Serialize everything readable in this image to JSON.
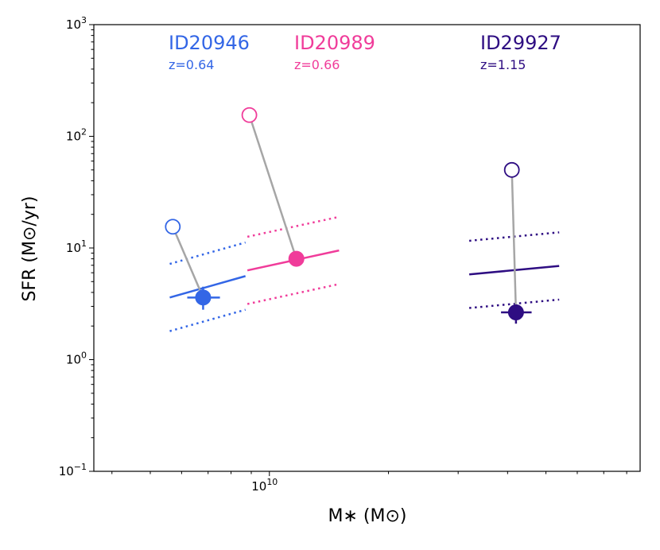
{
  "chart_data": {
    "type": "scatter",
    "xlabel": "M∗ (M⊙)",
    "ylabel": "SFR (M⊙/yr)",
    "xscale": "log",
    "yscale": "log",
    "xlim": [
      3600000000.0,
      86500000000.0
    ],
    "ylim": [
      0.1,
      1000
    ],
    "x_tick_labels": [
      {
        "value": 10000000000.0,
        "label": "10",
        "exp": "10"
      }
    ],
    "y_tick_labels": [
      {
        "value": 0.1,
        "label": "10",
        "exp": "−1"
      },
      {
        "value": 1,
        "label": "10",
        "exp": "0"
      },
      {
        "value": 10,
        "label": "10",
        "exp": "1"
      },
      {
        "value": 100,
        "label": "10",
        "exp": "2"
      },
      {
        "value": 1000,
        "label": "10",
        "exp": "3"
      }
    ],
    "grid": false,
    "series": [
      {
        "id": "ID20946",
        "annotation_name": "ID20946",
        "annotation_z": "z=0.64",
        "color": "#3366e6",
        "open_point": {
          "x": 5700000000.0,
          "y": 15.5
        },
        "filled_point": {
          "x": 6800000000.0,
          "y": 3.6,
          "xerr": [
            6200000000.0,
            7500000000.0
          ],
          "yerr": [
            2.8,
            4.5
          ]
        },
        "main_sequence": {
          "x": [
            5600000000.0,
            8700000000.0
          ],
          "y": [
            3.6,
            5.6
          ]
        },
        "ms_upper": {
          "x": [
            5600000000.0,
            8700000000.0
          ],
          "y": [
            7.2,
            11.2
          ]
        },
        "ms_lower": {
          "x": [
            5600000000.0,
            8700000000.0
          ],
          "y": [
            1.8,
            2.8
          ]
        }
      },
      {
        "id": "ID20989",
        "annotation_name": "ID20989",
        "annotation_z": "z=0.66",
        "color": "#f03c9a",
        "open_point": {
          "x": 8900000000.0,
          "y": 155
        },
        "filled_point": {
          "x": 11700000000.0,
          "y": 8.0
        },
        "main_sequence": {
          "x": [
            8800000000.0,
            15000000000.0
          ],
          "y": [
            6.3,
            9.5
          ]
        },
        "ms_upper": {
          "x": [
            8800000000.0,
            15000000000.0
          ],
          "y": [
            12.6,
            19
          ]
        },
        "ms_lower": {
          "x": [
            8800000000.0,
            15000000000.0
          ],
          "y": [
            3.15,
            4.75
          ]
        }
      },
      {
        "id": "ID29927",
        "annotation_name": "ID29927",
        "annotation_z": "z=1.15",
        "color": "#2e0d82",
        "open_point": {
          "x": 41000000000.0,
          "y": 50
        },
        "filled_point": {
          "x": 42000000000.0,
          "y": 2.65,
          "xerr": [
            38500000000.0,
            46000000000.0
          ],
          "yerr": [
            2.1,
            3.1
          ]
        },
        "main_sequence": {
          "x": [
            32000000000.0,
            54000000000.0
          ],
          "y": [
            5.8,
            6.9
          ]
        },
        "ms_upper": {
          "x": [
            32000000000.0,
            54000000000.0
          ],
          "y": [
            11.6,
            13.8
          ]
        },
        "ms_lower": {
          "x": [
            32000000000.0,
            54000000000.0
          ],
          "y": [
            2.9,
            3.45
          ]
        }
      }
    ]
  }
}
